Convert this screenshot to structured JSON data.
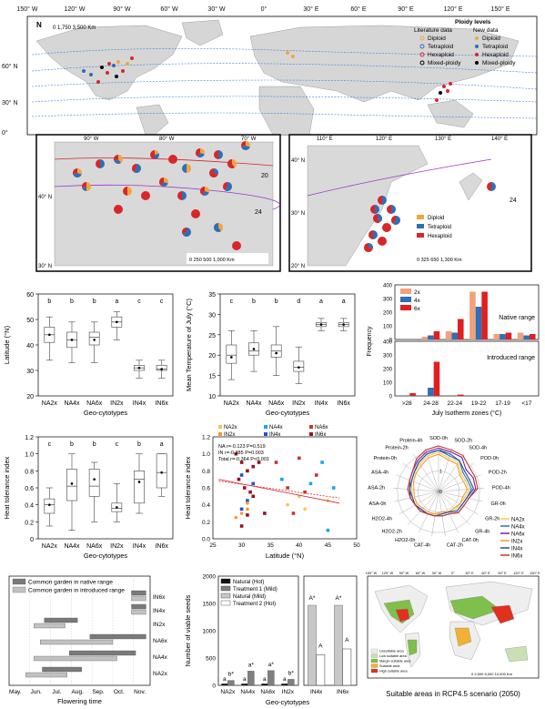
{
  "world_map": {
    "lon_labels": [
      "150° W",
      "120° W",
      "90° W",
      "60° W",
      "30° W",
      "0°",
      "30° E",
      "60° E",
      "90° E",
      "120° E",
      "150° E"
    ],
    "lat_labels": [
      "60° N",
      "30° N",
      "0°"
    ],
    "north": "N",
    "scale": "0   1,750   3,500 Km",
    "legend_title": "Ploidy levels",
    "legend_col1": "Literature data",
    "legend_col2": "New data",
    "legend_items": [
      "Diploid",
      "Tetraploid",
      "Hexaploid",
      "Mixed-ploidy"
    ],
    "isotherms": [
      "12",
      "16",
      "20",
      "24",
      "12",
      "16",
      "20",
      "24",
      "28",
      "16",
      "20",
      "24",
      "28"
    ]
  },
  "inset_na": {
    "lon_labels": [
      "90° W",
      "80° W",
      "70° W"
    ],
    "lat_labels": [
      "40° N",
      "30° N"
    ],
    "isotherms": [
      "20",
      "24"
    ],
    "scale": "0   250   500   1,000 Km"
  },
  "inset_asia": {
    "lon_labels": [
      "110° E",
      "120° E",
      "130° E",
      "140° E"
    ],
    "lat_labels": [
      "40° N",
      "30° N",
      "20° N"
    ],
    "isotherm": "24",
    "legend": [
      "Diploid",
      "Tetraploid",
      "Hexaploid"
    ],
    "scale": "0   325   650   1,300 Km"
  },
  "colors": {
    "diploid": "#f2a63a",
    "tetraploid": "#2d6fb8",
    "hexaploid": "#d8262a",
    "land": "#d9d9d9",
    "ocean": "#ffffff"
  },
  "panel_lat": {
    "chart_data": {
      "type": "box",
      "ylabel": "Latitude (°N)",
      "xlabel": "Geo-cytotypes",
      "categories": [
        "NA2x",
        "NA4x",
        "NA6x",
        "IN2x",
        "IN4x",
        "IN6x"
      ],
      "letters": [
        "b",
        "b",
        "b",
        "a",
        "c",
        "c"
      ],
      "ylim": [
        20,
        60
      ],
      "yticks": [
        "20",
        "30",
        "40",
        "50",
        "60"
      ],
      "boxes": [
        {
          "min": 34,
          "q1": 41,
          "median": 44,
          "q3": 47,
          "max": 51,
          "mean": 44
        },
        {
          "min": 33,
          "q1": 39,
          "median": 42,
          "q3": 45,
          "max": 49,
          "mean": 42
        },
        {
          "min": 33,
          "q1": 40,
          "median": 43,
          "q3": 45,
          "max": 49,
          "mean": 42
        },
        {
          "min": 42,
          "q1": 47,
          "median": 49,
          "q3": 51,
          "max": 53,
          "mean": 49
        },
        {
          "min": 27,
          "q1": 30,
          "median": 31,
          "q3": 32,
          "max": 34,
          "mean": 31
        },
        {
          "min": 27,
          "q1": 30,
          "median": 30.5,
          "q3": 32,
          "max": 34,
          "mean": 30.5
        }
      ]
    }
  },
  "panel_temp": {
    "chart_data": {
      "type": "box",
      "ylabel": "Mean Temperature of July (°C)",
      "xlabel": "Geo-cytotypes",
      "categories": [
        "NA2x",
        "NA4x",
        "NA6x",
        "IN2x",
        "IN4x",
        "IN6x"
      ],
      "letters": [
        "c",
        "b",
        "b",
        "d",
        "a",
        "a"
      ],
      "ylim": [
        10,
        35
      ],
      "yticks": [
        "10",
        "15",
        "20",
        "25",
        "30",
        "35"
      ],
      "boxes": [
        {
          "min": 14,
          "q1": 18,
          "median": 20,
          "q3": 22.5,
          "max": 26,
          "mean": 19.5
        },
        {
          "min": 16,
          "q1": 20,
          "median": 21,
          "q3": 23,
          "max": 26,
          "mean": 21.5
        },
        {
          "min": 15,
          "q1": 19.5,
          "median": 21,
          "q3": 22.5,
          "max": 27,
          "mean": 20.5
        },
        {
          "min": 13,
          "q1": 16,
          "median": 17,
          "q3": 18.5,
          "max": 22,
          "mean": 17
        },
        {
          "min": 26,
          "q1": 27,
          "median": 27.5,
          "q3": 28,
          "max": 29,
          "mean": 27.5
        },
        {
          "min": 26,
          "q1": 27,
          "median": 27.5,
          "q3": 28,
          "max": 29,
          "mean": 27.5
        }
      ]
    }
  },
  "panel_freq": {
    "chart_data": {
      "type": "bar",
      "ylabel": "Frequency",
      "xlabel": "July Isotherm zones (°C)",
      "categories": [
        ">28",
        "24-28",
        "22-24",
        "19-22",
        "17-19",
        "<17"
      ],
      "legend": [
        "2x",
        "4x",
        "6x"
      ],
      "native": {
        "title": "Native range",
        "ylim": [
          0,
          400
        ],
        "yticks": [
          "0",
          "100",
          "200",
          "300",
          "400"
        ],
        "series": [
          {
            "name": "2x",
            "values": [
              0,
              20,
              60,
              350,
              40,
              50
            ]
          },
          {
            "name": "4x",
            "values": [
              0,
              30,
              50,
              240,
              40,
              30
            ]
          },
          {
            "name": "6x",
            "values": [
              0,
              60,
              150,
              350,
              50,
              40
            ]
          }
        ]
      },
      "introduced": {
        "title": "Introduced range",
        "ylim": [
          0,
          400
        ],
        "yticks": [
          "0",
          "100",
          "200",
          "300",
          "400"
        ],
        "series": [
          {
            "name": "2x",
            "values": [
              0,
              0,
              0,
              0,
              0,
              0
            ]
          },
          {
            "name": "4x",
            "values": [
              0,
              60,
              0,
              0,
              0,
              0
            ]
          },
          {
            "name": "6x",
            "values": [
              20,
              250,
              10,
              0,
              0,
              0
            ]
          }
        ]
      },
      "colors": [
        "#f4a07a",
        "#2d6fb8",
        "#e02020"
      ]
    }
  },
  "panel_heat": {
    "chart_data": {
      "type": "box",
      "ylabel": "Heat tolerance index",
      "xlabel": "Geo-cytotypes",
      "categories": [
        "NA2x",
        "NA4x",
        "NA6x",
        "IN2x",
        "IN4x",
        "IN6x"
      ],
      "letters": [
        "c",
        "b",
        "b",
        "c",
        "b",
        "a"
      ],
      "ylim": [
        0,
        1.2
      ],
      "yticks": [
        "0",
        "0.2",
        "0.4",
        "0.6",
        "0.8",
        "1.0",
        "1.2"
      ],
      "boxes": [
        {
          "min": 0.15,
          "q1": 0.3,
          "median": 0.4,
          "q3": 0.47,
          "max": 0.6,
          "mean": 0.4
        },
        {
          "min": 0.1,
          "q1": 0.45,
          "median": 0.62,
          "q3": 0.82,
          "max": 1.0,
          "mean": 0.65
        },
        {
          "min": 0.2,
          "q1": 0.5,
          "median": 0.62,
          "q3": 0.82,
          "max": 0.9,
          "mean": 0.7
        },
        {
          "min": 0.2,
          "q1": 0.32,
          "median": 0.36,
          "q3": 0.42,
          "max": 0.65,
          "mean": 0.37
        },
        {
          "min": 0.3,
          "q1": 0.42,
          "median": 0.7,
          "q3": 0.8,
          "max": 1.0,
          "mean": 0.67
        },
        {
          "min": 0.5,
          "q1": 0.6,
          "median": 0.78,
          "q3": 1.0,
          "max": 1.0,
          "mean": 0.78
        }
      ]
    }
  },
  "panel_scatter": {
    "chart_data": {
      "type": "scatter",
      "ylabel": "Heat tolerance index",
      "xlabel": "Latitude (°N)",
      "xlim": [
        25,
        50
      ],
      "ylim": [
        0,
        1.2
      ],
      "xticks": [
        "25",
        "30",
        "35",
        "40",
        "45",
        "50"
      ],
      "yticks": [
        "0.0",
        "0.2",
        "0.4",
        "0.6",
        "0.8",
        "1.0",
        "1.2"
      ],
      "legend": [
        "NA2x",
        "NA4x",
        "NA6x",
        "IN2x",
        "IN4x",
        "IN6x"
      ],
      "stats": [
        "NA   r=-0.123 P=0.519",
        "IN   r=-0.385 P=0.003",
        "Total r=-0.364 P<0.001"
      ],
      "points": [
        {
          "g": "IN6x",
          "x": 29,
          "y": 1.0
        },
        {
          "g": "IN6x",
          "x": 30,
          "y": 0.9
        },
        {
          "g": "IN6x",
          "x": 31,
          "y": 0.8
        },
        {
          "g": "IN6x",
          "x": 32,
          "y": 0.85
        },
        {
          "g": "IN6x",
          "x": 30.5,
          "y": 0.6
        },
        {
          "g": "IN6x",
          "x": 31.5,
          "y": 0.55
        },
        {
          "g": "IN6x",
          "x": 29.5,
          "y": 0.7
        },
        {
          "g": "IN6x",
          "x": 32,
          "y": 0.5
        },
        {
          "g": "IN4x",
          "x": 30,
          "y": 0.75
        },
        {
          "g": "IN4x",
          "x": 31,
          "y": 0.45
        },
        {
          "g": "IN4x",
          "x": 30,
          "y": 0.35
        },
        {
          "g": "IN4x",
          "x": 32,
          "y": 0.65
        },
        {
          "g": "IN2x",
          "x": 30,
          "y": 0.3
        },
        {
          "g": "IN2x",
          "x": 31,
          "y": 0.35
        },
        {
          "g": "IN2x",
          "x": 29,
          "y": 0.25
        },
        {
          "g": "IN2x",
          "x": 31,
          "y": 0.42
        },
        {
          "g": "IN6x",
          "x": 33,
          "y": 0.9
        },
        {
          "g": "IN6x",
          "x": 34,
          "y": 0.3
        },
        {
          "g": "IN6x",
          "x": 31,
          "y": 0.28
        },
        {
          "g": "IN6x",
          "x": 30,
          "y": 0.15
        },
        {
          "g": "NA2x",
          "x": 38,
          "y": 0.4
        },
        {
          "g": "NA2x",
          "x": 41,
          "y": 0.35
        },
        {
          "g": "NA2x",
          "x": 45,
          "y": 0.45
        },
        {
          "g": "NA2x",
          "x": 40,
          "y": 0.5
        },
        {
          "g": "NA4x",
          "x": 37,
          "y": 0.7
        },
        {
          "g": "NA4x",
          "x": 42,
          "y": 0.65
        },
        {
          "g": "NA4x",
          "x": 44,
          "y": 0.9
        },
        {
          "g": "NA4x",
          "x": 45,
          "y": 0.1
        },
        {
          "g": "NA4x",
          "x": 46,
          "y": 0.6
        },
        {
          "g": "NA6x",
          "x": 40,
          "y": 0.95
        },
        {
          "g": "NA6x",
          "x": 43,
          "y": 0.75
        },
        {
          "g": "NA6x",
          "x": 38,
          "y": 0.6
        },
        {
          "g": "NA6x",
          "x": 36,
          "y": 0.9
        },
        {
          "g": "NA6x",
          "x": 41,
          "y": 0.55
        },
        {
          "g": "NA6x",
          "x": 39,
          "y": 0.3
        }
      ]
    }
  },
  "panel_radar": {
    "chart_data": {
      "type": "radar",
      "axes": [
        "SOD-0h",
        "SOD-2h",
        "SOD-4h",
        "POD-0h",
        "POD-2h",
        "POD-4h",
        "GR-0h",
        "GR-2h",
        "GR-4h",
        "CAT-0h",
        "CAT-2h",
        "CAT-4h",
        "H2O2-0h",
        "H2O2-2h",
        "H2O2-4h",
        "ASA-0h",
        "ASA-2h",
        "ASA-4h",
        "Protein-0h",
        "Protein-2h",
        "Protein-4h"
      ],
      "ring_labels": [
        "0",
        "1",
        "2"
      ],
      "legend": [
        "NA2x",
        "NA4x",
        "NA6x",
        "IN2x",
        "IN4x",
        "IN6x"
      ],
      "colors": [
        "#f2c94c",
        "#2d6fb8",
        "#7a1fa2",
        "#f29a2e",
        "#1f4fa8",
        "#c0392b"
      ],
      "series": [
        {
          "name": "NA2x",
          "values": [
            1.9,
            1.7,
            1.7,
            1.4,
            1.4,
            1.5,
            1.3,
            1.2,
            1.2,
            1.1,
            1.1,
            1.1,
            1.2,
            1.2,
            1.3,
            1.3,
            1.3,
            1.4,
            1.5,
            1.6,
            1.8
          ]
        },
        {
          "name": "NA4x",
          "values": [
            2.0,
            1.8,
            1.8,
            1.5,
            1.5,
            1.6,
            1.4,
            1.3,
            1.3,
            1.1,
            1.1,
            1.2,
            1.2,
            1.2,
            1.3,
            1.4,
            1.4,
            1.4,
            1.5,
            1.7,
            1.9
          ]
        },
        {
          "name": "NA6x",
          "values": [
            2.1,
            2.0,
            2.0,
            1.7,
            1.8,
            1.8,
            1.5,
            1.4,
            1.4,
            1.2,
            1.2,
            1.2,
            1.2,
            1.3,
            1.3,
            1.4,
            1.4,
            1.5,
            1.6,
            1.8,
            2.0
          ]
        },
        {
          "name": "IN2x",
          "values": [
            1.8,
            1.6,
            1.6,
            1.3,
            1.3,
            1.4,
            1.2,
            1.2,
            1.1,
            1.1,
            1.0,
            1.1,
            1.1,
            1.1,
            1.2,
            1.2,
            1.2,
            1.3,
            1.4,
            1.5,
            1.7
          ]
        },
        {
          "name": "IN4x",
          "values": [
            2.0,
            1.9,
            1.8,
            1.6,
            1.6,
            1.7,
            1.4,
            1.3,
            1.3,
            1.1,
            1.1,
            1.2,
            1.2,
            1.2,
            1.3,
            1.3,
            1.4,
            1.4,
            1.5,
            1.7,
            1.9
          ]
        },
        {
          "name": "IN6x",
          "values": [
            2.2,
            2.1,
            2.1,
            1.9,
            1.9,
            1.9,
            1.5,
            1.4,
            1.4,
            1.2,
            1.2,
            1.2,
            1.2,
            1.3,
            1.3,
            1.4,
            1.5,
            1.5,
            1.6,
            1.9,
            2.1
          ]
        }
      ]
    }
  },
  "panel_flower": {
    "chart_data": {
      "type": "gantt",
      "xlabel": "Flowering time",
      "months": [
        "May.",
        "Jun.",
        "Jul.",
        "Aug.",
        "Sep.",
        "Oct.",
        "Nov."
      ],
      "legend": [
        "Common garden in native range",
        "Common garden in introduced range"
      ],
      "colors": [
        "#7a7a7a",
        "#c2c2c2"
      ],
      "rows": [
        {
          "label": "IN6x",
          "native": [
            5.9,
            6.6
          ],
          "introduced": [
            5.9,
            6.6
          ]
        },
        {
          "label": "IN4x",
          "native": [
            5.9,
            6.6
          ],
          "introduced": [
            5.9,
            6.6
          ]
        },
        {
          "label": "IN2x",
          "native": [
            1.7,
            3.3
          ],
          "introduced": [
            1.2,
            2.7
          ]
        },
        {
          "label": "NA6x",
          "native": [
            3.9,
            6.6
          ],
          "introduced": [
            1.5,
            5.0
          ]
        },
        {
          "label": "NA4x",
          "native": [
            2.9,
            6.1
          ],
          "introduced": [
            1.2,
            5.2
          ]
        },
        {
          "label": "NA2x",
          "native": [
            1.6,
            3.5
          ],
          "introduced": [
            0.8,
            2.8
          ]
        }
      ]
    }
  },
  "panel_seeds": {
    "chart_data": {
      "type": "bar",
      "ylabel": "Number of viable seeds",
      "xlabel": "Geo-cytotypes",
      "legend": [
        "Natural (Hot)",
        "Treatment 1 (Mild)",
        "Natural (Mild)",
        "Treatment 2 (Hot)"
      ],
      "colors": [
        "#111111",
        "#7f7f7f",
        "#c8c8c8",
        "#ffffff"
      ],
      "left": {
        "categories": [
          "NA2x",
          "NA4x",
          "NA6x",
          "IN2x"
        ],
        "ylim": [
          0,
          2000
        ],
        "yticks": [
          "0",
          "500",
          "1000",
          "1500",
          "2000"
        ],
        "series": [
          {
            "name": "Natural (Hot)",
            "values": [
              30,
              30,
              30,
              30
            ]
          },
          {
            "name": "Treatment 1 (Mild)",
            "values": [
              90,
              260,
              270,
              110
            ]
          }
        ],
        "labels_a": [
          "a",
          "a",
          "a",
          "a"
        ],
        "labels_b": [
          "b*",
          "a*",
          "a*",
          "b*"
        ]
      },
      "right": {
        "categories": [
          "IN4x",
          "IN6x"
        ],
        "ylim": [
          0,
          15000
        ],
        "yticks": [
          "0",
          "5000",
          "10000",
          "15000"
        ],
        "series": [
          {
            "name": "Natural (Mild)",
            "values": [
              11000,
              11000
            ]
          },
          {
            "name": "Treatment 2 (Hot)",
            "values": [
              4200,
              5000
            ]
          }
        ],
        "labels_top": [
          "A*",
          "A*"
        ],
        "labels_mid": [
          "A",
          "A"
        ]
      }
    }
  },
  "panel_suit": {
    "title": "Suitable areas in RCP4.5 scenario (2050)",
    "lon_labels": [
      "150° W",
      "120° W",
      "90° W",
      "60° W",
      "30° W",
      "0°",
      "30° E",
      "60° E",
      "90° E",
      "120° E",
      "150° E"
    ],
    "legend": [
      "Unsuitable area",
      "Low suitable area",
      "Margin suitable area",
      "Suitable area",
      "High suitable area"
    ],
    "legend_colors": [
      "#eeeeee",
      "#c9e0b5",
      "#7fbf4c",
      "#f2b134",
      "#e0301e"
    ],
    "scale": "0   2,500   5,000     10,000 Km"
  }
}
